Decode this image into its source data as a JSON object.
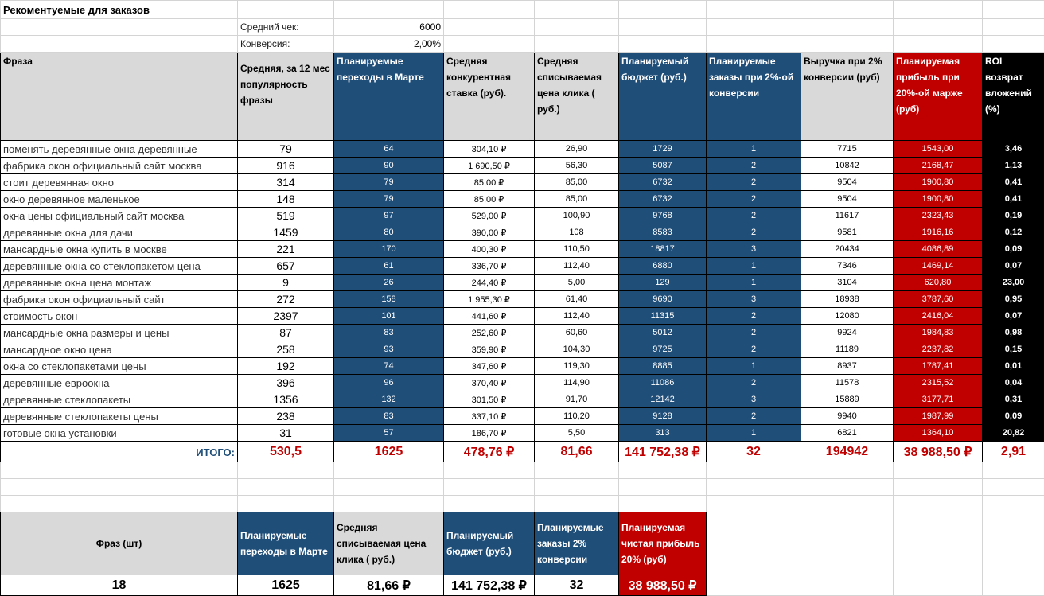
{
  "title": "Рекоментуемые для заказов",
  "avg_check_label": "Средний чек:",
  "avg_check_value": "6000",
  "conversion_label": "Конверсия:",
  "conversion_value": "2,00%",
  "colors": {
    "blue": "#1f4e79",
    "red": "#c00000",
    "grey": "#d9d9d9",
    "black": "#000000"
  },
  "headers": [
    "Фраза",
    "Средняя, за 12 мес популярность фразы",
    "Планируемые переходы в Марте",
    "Средняя конкурентная ставка (руб).",
    "Средняя списываемая цена клика ( руб.)",
    "Планируемый бюджет (руб.)",
    "Планируемые заказы при 2%-ой конверсии",
    "Выручка при 2% конверсии (руб)",
    "Планируемая прибыль при 20%-ой марже (руб)",
    "ROI возврат вложений (%)"
  ],
  "rows": [
    [
      "поменять деревянные окна деревянные",
      "79",
      "64",
      "304,10 ₽",
      "26,90",
      "1729",
      "1",
      "7715",
      "1543,00",
      "3,46"
    ],
    [
      "фабрика окон официальный сайт москва",
      "916",
      "90",
      "1 690,50 ₽",
      "56,30",
      "5087",
      "2",
      "10842",
      "2168,47",
      "1,13"
    ],
    [
      "стоит деревянная окно",
      "314",
      "79",
      "85,00 ₽",
      "85,00",
      "6732",
      "2",
      "9504",
      "1900,80",
      "0,41"
    ],
    [
      "окно деревянное маленькое",
      "148",
      "79",
      "85,00 ₽",
      "85,00",
      "6732",
      "2",
      "9504",
      "1900,80",
      "0,41"
    ],
    [
      "окна цены официальный сайт москва",
      "519",
      "97",
      "529,00 ₽",
      "100,90",
      "9768",
      "2",
      "11617",
      "2323,43",
      "0,19"
    ],
    [
      "деревянные окна для дачи",
      "1459",
      "80",
      "390,00 ₽",
      "108",
      "8583",
      "2",
      "9581",
      "1916,16",
      "0,12"
    ],
    [
      "мансардные окна купить в москве",
      "221",
      "170",
      "400,30 ₽",
      "110,50",
      "18817",
      "3",
      "20434",
      "4086,89",
      "0,09"
    ],
    [
      "деревянные окна со стеклопакетом цена",
      "657",
      "61",
      "336,70 ₽",
      "112,40",
      "6880",
      "1",
      "7346",
      "1469,14",
      "0,07"
    ],
    [
      "деревянные окна цена монтаж",
      "9",
      "26",
      "244,40 ₽",
      "5,00",
      "129",
      "1",
      "3104",
      "620,80",
      "23,00"
    ],
    [
      "фабрика окон официальный сайт",
      "272",
      "158",
      "1 955,30 ₽",
      "61,40",
      "9690",
      "3",
      "18938",
      "3787,60",
      "0,95"
    ],
    [
      "стоимость окон",
      "2397",
      "101",
      "441,60 ₽",
      "112,40",
      "11315",
      "2",
      "12080",
      "2416,04",
      "0,07"
    ],
    [
      "мансардные окна размеры и цены",
      "87",
      "83",
      "252,60 ₽",
      "60,60",
      "5012",
      "2",
      "9924",
      "1984,83",
      "0,98"
    ],
    [
      "мансардное окно цена",
      "258",
      "93",
      "359,90 ₽",
      "104,30",
      "9725",
      "2",
      "11189",
      "2237,82",
      "0,15"
    ],
    [
      "окна со стеклопакетами цены",
      "192",
      "74",
      "347,60 ₽",
      "119,30",
      "8885",
      "1",
      "8937",
      "1787,41",
      "0,01"
    ],
    [
      "деревянные евроокна",
      "396",
      "96",
      "370,40 ₽",
      "114,90",
      "11086",
      "2",
      "11578",
      "2315,52",
      "0,04"
    ],
    [
      "деревянные стеклопакеты",
      "1356",
      "132",
      "301,50 ₽",
      "91,70",
      "12142",
      "3",
      "15889",
      "3177,71",
      "0,31"
    ],
    [
      "деревянные стеклопакеты цены",
      "238",
      "83",
      "337,10 ₽",
      "110,20",
      "9128",
      "2",
      "9940",
      "1987,99",
      "0,09"
    ],
    [
      "готовые окна установки",
      "31",
      "57",
      "186,70 ₽",
      "5,50",
      "313",
      "1",
      "6821",
      "1364,10",
      "20,82"
    ]
  ],
  "totals": {
    "label": "ИТОГО:",
    "values": [
      "530,5",
      "1625",
      "478,76 ₽",
      "81,66",
      "141 752,38 ₽",
      "32",
      "194942",
      "38 988,50 ₽",
      "2,91"
    ]
  },
  "summary": {
    "headers": [
      "Фраз (шт)",
      "Планируемые переходы в Марте",
      "Средняя списываемая цена клика ( руб.)",
      "Планируемый бюджет (руб.)",
      "Планируемые заказы 2% конверсии",
      "Планируемая чистая прибыль 20% (руб)"
    ],
    "values": [
      "18",
      "1625",
      "81,66 ₽",
      "141 752,38 ₽",
      "32",
      "38 988,50 ₽"
    ]
  }
}
